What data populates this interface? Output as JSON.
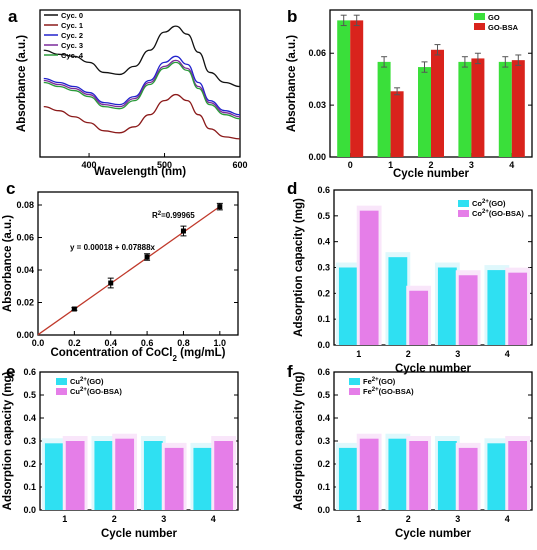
{
  "colors": {
    "cyan": "#2fe0f2",
    "pink": "#e57ee8",
    "green": "#3adf3a",
    "red": "#d9231c",
    "fit_line": "#c0392b",
    "error_bar": "#555555",
    "glow_cyan": "#dff8fc",
    "glow_pink": "#f9e6fa"
  },
  "chart_data": [
    {
      "panel": "a",
      "type": "line",
      "title": "",
      "xlabel": "Wavelength (nm)",
      "ylabel": "Absorbance (a.u.)",
      "xlim": [
        335,
        600
      ],
      "xticks": [
        400,
        500,
        600
      ],
      "yticks_shown": false,
      "legend_position": "top-left",
      "series": [
        {
          "name": "Cyc. 0",
          "color": "#111111",
          "points": [
            [
              340,
              0.58
            ],
            [
              360,
              0.56
            ],
            [
              380,
              0.55
            ],
            [
              400,
              0.52
            ],
            [
              420,
              0.47
            ],
            [
              440,
              0.46
            ],
            [
              460,
              0.5
            ],
            [
              480,
              0.58
            ],
            [
              500,
              0.67
            ],
            [
              515,
              0.7
            ],
            [
              530,
              0.66
            ],
            [
              545,
              0.57
            ],
            [
              560,
              0.47
            ],
            [
              580,
              0.42
            ],
            [
              600,
              0.4
            ]
          ]
        },
        {
          "name": "Cyc. 1",
          "color": "#8b1a1a",
          "points": [
            [
              340,
              0.3
            ],
            [
              360,
              0.28
            ],
            [
              380,
              0.25
            ],
            [
              400,
              0.22
            ],
            [
              420,
              0.18
            ],
            [
              440,
              0.17
            ],
            [
              460,
              0.2
            ],
            [
              480,
              0.26
            ],
            [
              500,
              0.33
            ],
            [
              515,
              0.36
            ],
            [
              530,
              0.33
            ],
            [
              545,
              0.26
            ],
            [
              560,
              0.19
            ],
            [
              580,
              0.15
            ],
            [
              600,
              0.14
            ]
          ]
        },
        {
          "name": "Cyc. 2",
          "color": "#2222cc",
          "points": [
            [
              340,
              0.44
            ],
            [
              360,
              0.42
            ],
            [
              380,
              0.4
            ],
            [
              400,
              0.37
            ],
            [
              420,
              0.32
            ],
            [
              440,
              0.31
            ],
            [
              460,
              0.35
            ],
            [
              480,
              0.43
            ],
            [
              500,
              0.52
            ],
            [
              515,
              0.55
            ],
            [
              530,
              0.51
            ],
            [
              545,
              0.42
            ],
            [
              560,
              0.33
            ],
            [
              580,
              0.28
            ],
            [
              600,
              0.26
            ]
          ]
        },
        {
          "name": "Cyc. 3",
          "color": "#7a2a9a",
          "points": [
            [
              340,
              0.43
            ],
            [
              360,
              0.41
            ],
            [
              380,
              0.39
            ],
            [
              400,
              0.36
            ],
            [
              420,
              0.31
            ],
            [
              440,
              0.3
            ],
            [
              460,
              0.34
            ],
            [
              480,
              0.42
            ],
            [
              500,
              0.5
            ],
            [
              515,
              0.53
            ],
            [
              530,
              0.49
            ],
            [
              545,
              0.4
            ],
            [
              560,
              0.32
            ],
            [
              580,
              0.27
            ],
            [
              600,
              0.25
            ]
          ]
        },
        {
          "name": "Cyc. 4",
          "color": "#2a9a3a",
          "points": [
            [
              340,
              0.42
            ],
            [
              360,
              0.4
            ],
            [
              380,
              0.38
            ],
            [
              400,
              0.35
            ],
            [
              420,
              0.3
            ],
            [
              440,
              0.29
            ],
            [
              460,
              0.33
            ],
            [
              480,
              0.41
            ],
            [
              500,
              0.49
            ],
            [
              515,
              0.52
            ],
            [
              530,
              0.48
            ],
            [
              545,
              0.39
            ],
            [
              560,
              0.31
            ],
            [
              580,
              0.26
            ],
            [
              600,
              0.24
            ]
          ]
        }
      ]
    },
    {
      "panel": "b",
      "type": "bar",
      "title": "",
      "xlabel": "Cycle number",
      "ylabel": "Absorbance (a.u.)",
      "ylim": [
        0,
        0.085
      ],
      "yticks": [
        "0.00",
        "0.03",
        "0.06"
      ],
      "categories": [
        "0",
        "1",
        "2",
        "3",
        "4"
      ],
      "legend_position": "top-right",
      "series": [
        {
          "name": "GO",
          "color": "#3adf3a",
          "values": [
            0.079,
            0.055,
            0.052,
            0.055,
            0.055
          ],
          "errors": [
            0.003,
            0.003,
            0.003,
            0.003,
            0.003
          ]
        },
        {
          "name": "GO-BSA",
          "color": "#d9231c",
          "values": [
            0.079,
            0.038,
            0.062,
            0.057,
            0.056
          ],
          "errors": [
            0.003,
            0.002,
            0.003,
            0.003,
            0.003
          ]
        }
      ]
    },
    {
      "panel": "c",
      "type": "scatter",
      "title": "",
      "xlabel_main": "Concentration of CoCl",
      "xlabel_sub": "2",
      "xlabel_unit": " (mg/mL)",
      "ylabel": "Absorbance (a.u.)",
      "xlim": [
        0,
        1.1
      ],
      "ylim": [
        0,
        0.088
      ],
      "xticks": [
        "0.0",
        "0.2",
        "0.4",
        "0.6",
        "0.8",
        "1.0"
      ],
      "yticks": [
        "0.00",
        "0.02",
        "0.04",
        "0.06",
        "0.08"
      ],
      "points": [
        {
          "x": 0.2,
          "y": 0.016,
          "err": 0.0008
        },
        {
          "x": 0.4,
          "y": 0.032,
          "err": 0.003
        },
        {
          "x": 0.6,
          "y": 0.048,
          "err": 0.002
        },
        {
          "x": 0.8,
          "y": 0.064,
          "err": 0.003
        },
        {
          "x": 1.0,
          "y": 0.079,
          "err": 0.002
        }
      ],
      "fit": {
        "intercept": 0.00018,
        "slope": 0.07888
      },
      "r2_main": "R",
      "r2_sup": "2",
      "r2_value": "=0.99965",
      "equation": "y = 0.00018 + 0.07888x"
    },
    {
      "panel": "d",
      "type": "bar",
      "title": "",
      "xlabel": "Cycle number",
      "ylabel": "Adsorption capacity (mg)",
      "ylim": [
        0,
        0.6
      ],
      "yticks": [
        "0.0",
        "0.1",
        "0.2",
        "0.3",
        "0.4",
        "0.5",
        "0.6"
      ],
      "categories": [
        "1",
        "2",
        "3",
        "4"
      ],
      "legend_position": "top-right",
      "series": [
        {
          "ion": "Co",
          "charge": "2+",
          "suffix": "(GO)",
          "color": "#2fe0f2",
          "values": [
            0.3,
            0.34,
            0.3,
            0.29
          ]
        },
        {
          "ion": "Co",
          "charge": "2+",
          "suffix": "(GO-BSA)",
          "color": "#e57ee8",
          "values": [
            0.52,
            0.21,
            0.27,
            0.28
          ]
        }
      ]
    },
    {
      "panel": "e",
      "type": "bar",
      "title": "",
      "xlabel": "Cycle number",
      "ylabel": "Adsorption capacity (mg)",
      "ylim": [
        0,
        0.6
      ],
      "yticks": [
        "0.0",
        "0.1",
        "0.2",
        "0.3",
        "0.4",
        "0.5",
        "0.6"
      ],
      "categories": [
        "1",
        "2",
        "3",
        "4"
      ],
      "legend_position": "top-left",
      "series": [
        {
          "ion": "Cu",
          "charge": "2+",
          "suffix": "(GO)",
          "color": "#2fe0f2",
          "values": [
            0.29,
            0.3,
            0.3,
            0.27
          ]
        },
        {
          "ion": "Cu",
          "charge": "2+",
          "suffix": "(GO-BSA)",
          "color": "#e57ee8",
          "values": [
            0.3,
            0.31,
            0.27,
            0.3
          ]
        }
      ]
    },
    {
      "panel": "f",
      "type": "bar",
      "title": "",
      "xlabel": "Cycle number",
      "ylabel": "Adsorption capacity (mg)",
      "ylim": [
        0,
        0.6
      ],
      "yticks": [
        "0.0",
        "0.1",
        "0.2",
        "0.3",
        "0.4",
        "0.5",
        "0.6"
      ],
      "categories": [
        "1",
        "2",
        "3",
        "4"
      ],
      "legend_position": "top-left",
      "series": [
        {
          "ion": "Fe",
          "charge": "2+",
          "suffix": "(GO)",
          "color": "#2fe0f2",
          "values": [
            0.27,
            0.31,
            0.3,
            0.29
          ]
        },
        {
          "ion": "Fe",
          "charge": "2+",
          "suffix": "(GO-BSA)",
          "color": "#e57ee8",
          "values": [
            0.31,
            0.3,
            0.27,
            0.3
          ]
        }
      ]
    }
  ]
}
